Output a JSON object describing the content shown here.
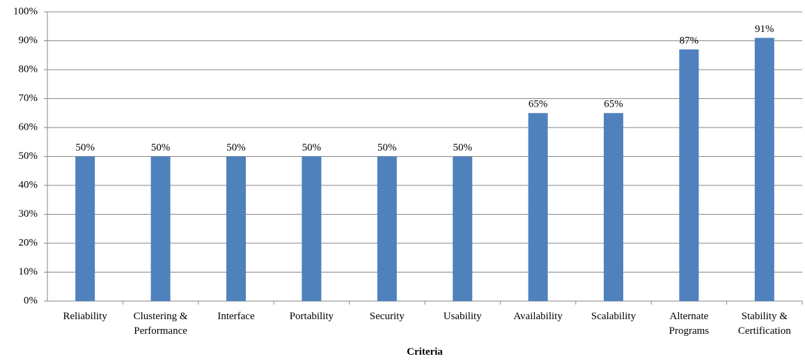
{
  "chart_data": {
    "type": "bar",
    "x_label": "Criteria",
    "categories": [
      "Reliability",
      "Clustering & Performance",
      "Interface",
      "Portability",
      "Security",
      "Usability",
      "Availability",
      "Scalability",
      "Alternate Programs",
      "Stability & Certification"
    ],
    "values": [
      50,
      50,
      50,
      50,
      50,
      50,
      65,
      65,
      87,
      91
    ],
    "value_labels": [
      "50%",
      "50%",
      "50%",
      "50%",
      "50%",
      "50%",
      "65%",
      "65%",
      "87%",
      "91%"
    ],
    "color": "#4f81bd",
    "ylim": [
      0,
      100
    ],
    "yticks": [
      {
        "value": 0,
        "label": "0%"
      },
      {
        "value": 10,
        "label": "10%"
      },
      {
        "value": 20,
        "label": "20%"
      },
      {
        "value": 30,
        "label": "30%"
      },
      {
        "value": 40,
        "label": "40%"
      },
      {
        "value": 50,
        "label": "50%"
      },
      {
        "value": 60,
        "label": "60%"
      },
      {
        "value": 70,
        "label": "70%"
      },
      {
        "value": 80,
        "label": "80%"
      },
      {
        "value": 90,
        "label": "90%"
      },
      {
        "value": 100,
        "label": "100%"
      }
    ],
    "grid": true
  }
}
